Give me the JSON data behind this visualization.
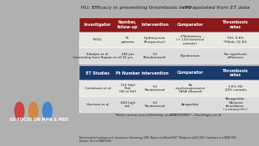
{
  "title": "HU: Efficacy in preventing thrombosis in PV extrapolated from ET data",
  "title_italic_part": "extrapolated from ET data",
  "bg_color": "#d4d4d4",
  "slide_bg": "#c8c8c8",
  "left_panel_bg": "#2a2a2a",
  "pv_header_bg": "#8b1a1a",
  "et_header_bg": "#1a3a6b",
  "row_bg_light": "#e8e8e8",
  "row_bg_white": "#f0f0f0",
  "header_text": "#ffffff",
  "cell_text": "#1a1a1a",
  "pv_columns": [
    "Investigator",
    "Number,\nfollow-up",
    "Intervention",
    "Comparator",
    "Thrombosis\nrates"
  ],
  "et_columns": [
    "ET Studies",
    "Pt Number",
    "Intervention",
    "Comparator",
    "Thrombosis\nrates"
  ],
  "pv_rows": [
    [
      "PVSG",
      "51\npatients",
      "Hydroxyurea\n(Prospective)",
      "—Phlebotomy\n(+ 134 historical\ncontrols)",
      "*HU: 9.8%\n*Phleb: 32.8%"
    ],
    [
      "Kiladjan et al\n(extending from Najean et al)",
      "285 pts\n16 yrs",
      "HU\n(Randomized)",
      "Pipobroman",
      "No significant\ndifference"
    ]
  ],
  "et_rows": [
    [
      "Cortelazzo et al",
      "114 High\nRisk\n(56 to HU)",
      "HU\nRandomized",
      "No\nmyelosuppressive\n(ASA allowed)",
      "3.6% HU\n24% controls"
    ],
    [
      "Harrison et al",
      "809 high\nrisk",
      "HU\nRandomized",
      "Anagrelide",
      "*Anagrelide:\n↑Arterial\nthrombosis\n(↓venous thr.)"
    ]
  ],
  "footnote": "*Note recent non-inferiority in ANAHYDRET—Gisslinger et al",
  "ref_text": "Referenced to Fruchtman et al., Seminars in Hematology 1995; Najean et al Blood 1997; *Kiladjan et al JCO 2011; Cortelazzo et al NEJM 1995;\nHarrison, Oh et al NEJM 2005."
}
